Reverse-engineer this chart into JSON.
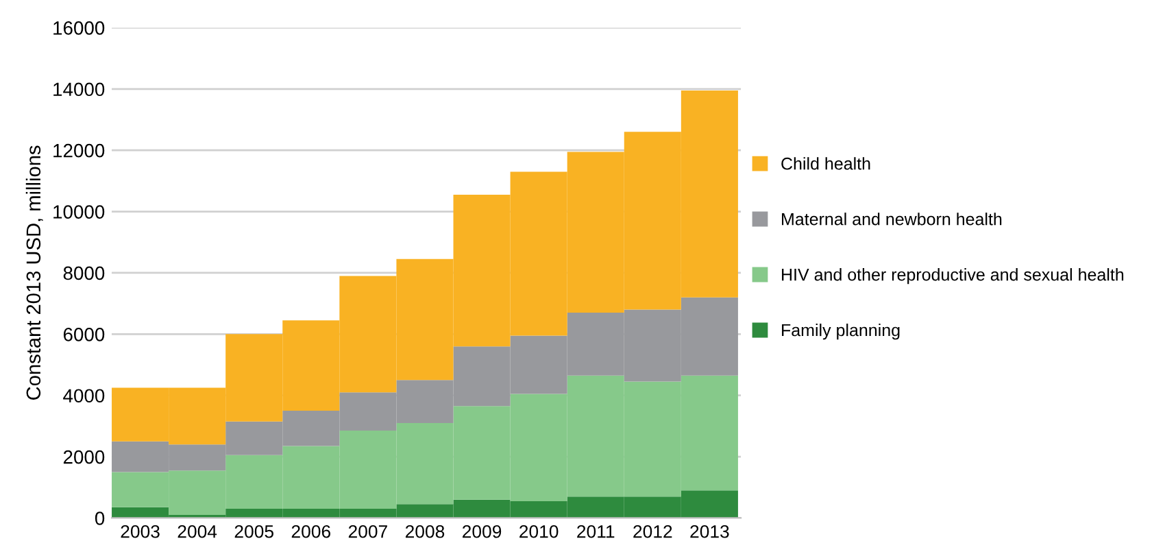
{
  "chart_data": {
    "type": "bar",
    "stacked": true,
    "ylabel": "Constant 2013 USD, millions",
    "categories": [
      "2003",
      "2004",
      "2005",
      "2006",
      "2007",
      "2008",
      "2009",
      "2010",
      "2011",
      "2012",
      "2013"
    ],
    "series": [
      {
        "name": "Family planning",
        "color": "#2e8b3e",
        "values": [
          350,
          100,
          300,
          300,
          300,
          450,
          600,
          550,
          700,
          700,
          900
        ]
      },
      {
        "name": "HIV and other reproductive and sexual health",
        "color": "#86c98a",
        "values": [
          1150,
          1450,
          1750,
          2050,
          2550,
          2650,
          3050,
          3500,
          3950,
          3750,
          3750
        ]
      },
      {
        "name": "Maternal and newborn health",
        "color": "#98999d",
        "values": [
          1000,
          850,
          1100,
          1150,
          1250,
          1400,
          1950,
          1900,
          2050,
          2350,
          2550
        ]
      },
      {
        "name": "Child health",
        "color": "#f9b223",
        "values": [
          1750,
          1850,
          2850,
          2950,
          3800,
          3950,
          4950,
          5350,
          5250,
          5800,
          6750
        ]
      }
    ],
    "ylim": [
      0,
      16000
    ],
    "yticks": [
      0,
      2000,
      4000,
      6000,
      8000,
      10000,
      12000,
      14000,
      16000
    ],
    "grid": "y",
    "legend": "right"
  }
}
